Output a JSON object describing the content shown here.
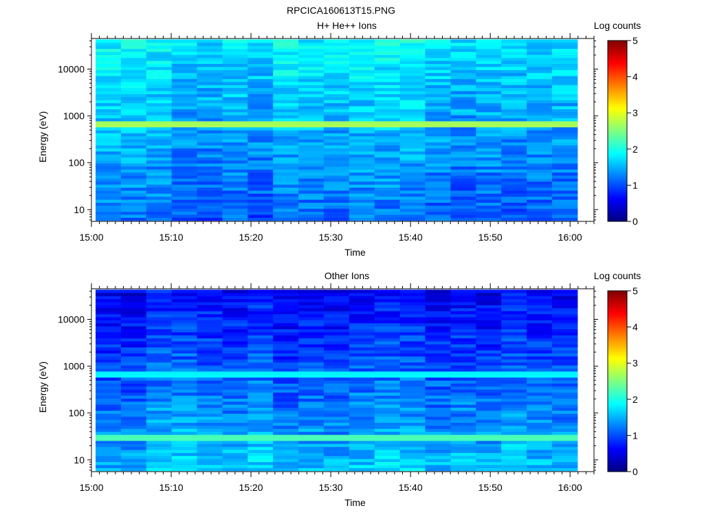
{
  "figure": {
    "title": "RPCICA160613T15.PNG"
  },
  "chart_data": [
    {
      "type": "heatmap",
      "title": "H+ He++ Ions",
      "xlabel": "Time",
      "ylabel": "Energy (eV)",
      "x_ticks": [
        "15:00",
        "15:10",
        "15:20",
        "15:30",
        "15:40",
        "15:50",
        "16:00"
      ],
      "x_range": [
        "15:00",
        "16:03"
      ],
      "y_scale": "log",
      "y_ticks": [
        "10",
        "100",
        "1000",
        "10000"
      ],
      "y_range": [
        5.6,
        45000
      ],
      "colorbar": {
        "label": "Log counts",
        "range": [
          0,
          5
        ],
        "ticks": [
          "0",
          "1",
          "2",
          "3",
          "4",
          "5"
        ],
        "colormap": "jet"
      },
      "data_end_time": "16:01",
      "time_bins": 19,
      "energy_bins": 60,
      "features": [
        {
          "energy_eV": 660,
          "log_counts": 2.75,
          "description": "bright band"
        }
      ],
      "background_log_counts": {
        "high_energy": 1.8,
        "low_energy": 1.1
      }
    },
    {
      "type": "heatmap",
      "title": "Other Ions",
      "xlabel": "Time",
      "ylabel": "Energy (eV)",
      "x_ticks": [
        "15:00",
        "15:10",
        "15:20",
        "15:30",
        "15:40",
        "15:50",
        "16:00"
      ],
      "x_range": [
        "15:00",
        "16:03"
      ],
      "y_scale": "log",
      "y_ticks": [
        "10",
        "100",
        "1000",
        "10000"
      ],
      "y_range": [
        5.6,
        45000
      ],
      "colorbar": {
        "label": "Log counts",
        "range": [
          0,
          5
        ],
        "ticks": [
          "0",
          "1",
          "2",
          "3",
          "4",
          "5"
        ],
        "colormap": "jet"
      },
      "data_end_time": "16:01",
      "time_bins": 19,
      "energy_bins": 60,
      "features": [
        {
          "energy_eV": 660,
          "log_counts": 1.9,
          "description": "bright band"
        },
        {
          "energy_eV": 30,
          "log_counts": 2.3,
          "description": "low-energy band"
        }
      ],
      "background_log_counts": {
        "high_energy": 0.6,
        "low_energy": 1.6
      }
    }
  ]
}
